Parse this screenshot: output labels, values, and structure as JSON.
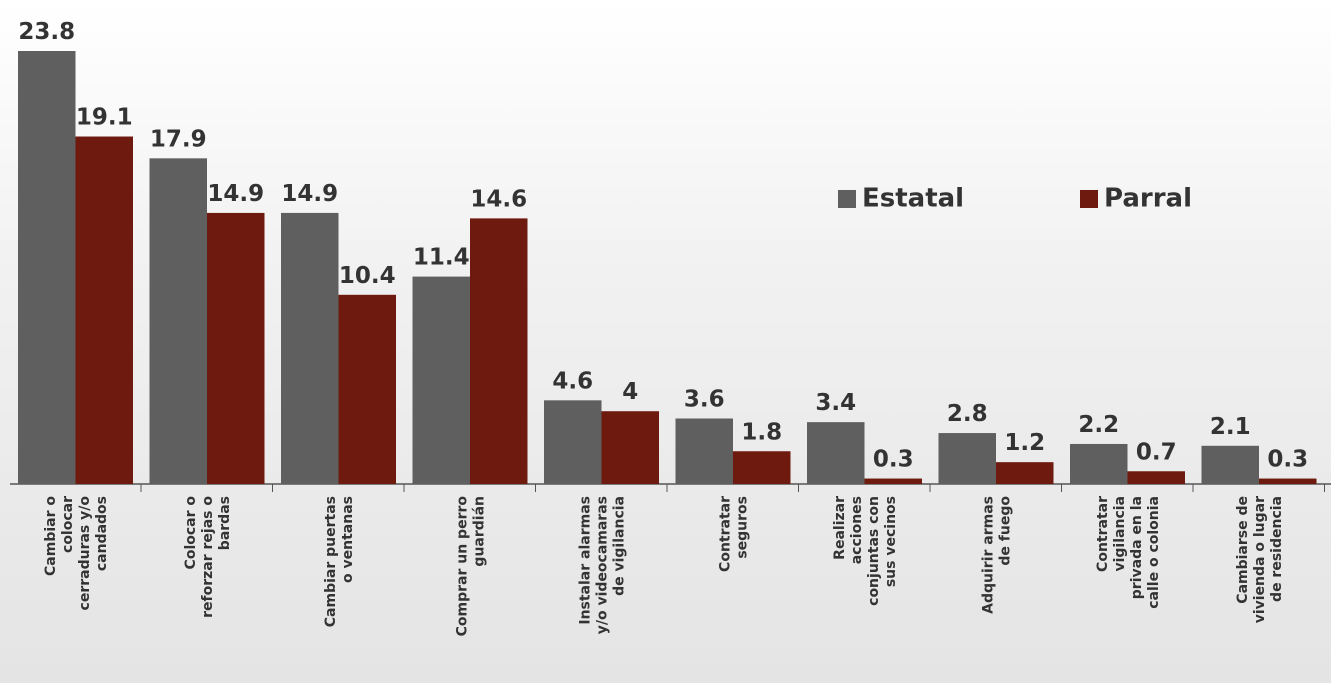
{
  "chart_data": {
    "type": "bar",
    "categories": [
      "Cambiar o colocar cerraduras y/o candados",
      "Colocar o reforzar rejas o bardas",
      "Cambiar puertas o ventanas",
      "Comprar un perro guardián",
      "Instalar alarmas y/o videocamaras de vigilancia",
      "Contratar seguros",
      "Realizar acciones conjuntas con sus vecinos",
      "Adquirir armas de fuego",
      "Contratar vigilancia privada en la calle o colonia",
      "Cambiarse de vivienda o lugar de residencia"
    ],
    "series": [
      {
        "name": "Estatal",
        "color": "#5f5f5f",
        "values": [
          23.8,
          17.9,
          14.9,
          11.4,
          4.6,
          3.6,
          3.4,
          2.8,
          2.2,
          2.1
        ]
      },
      {
        "name": "Parral",
        "color": "#6e1a0e",
        "values": [
          19.1,
          14.9,
          10.4,
          14.6,
          4,
          1.8,
          0.3,
          1.2,
          0.7,
          0.3
        ]
      }
    ],
    "legend": "top-right"
  }
}
